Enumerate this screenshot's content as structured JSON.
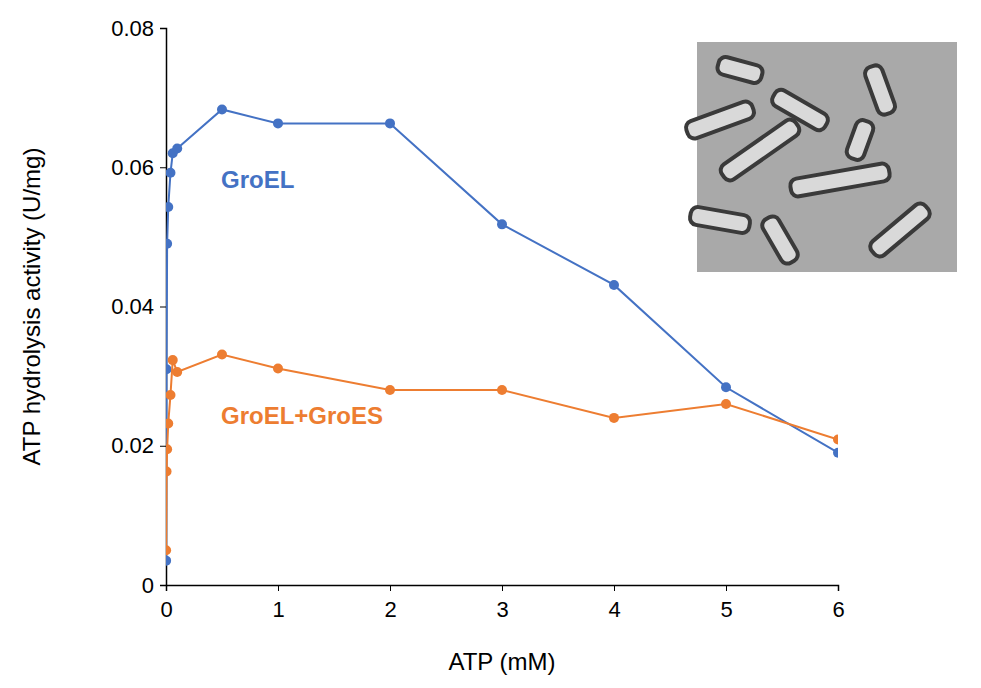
{
  "chart_data": {
    "type": "line",
    "x_label": "ATP (mM)",
    "y_label": "ATP hydrolysis activity (U/mg)",
    "x": [
      0.001,
      0.005,
      0.01,
      0.02,
      0.04,
      0.06,
      0.1,
      0.5,
      1,
      2,
      3,
      4,
      5,
      6
    ],
    "series": [
      {
        "name": "GroEL",
        "color": "#4472c4",
        "marker": "circle",
        "values": [
          0.0035,
          0.031,
          0.049,
          0.0543,
          0.0592,
          0.062,
          0.0627,
          0.0683,
          0.0663,
          0.0663,
          0.0518,
          0.0431,
          0.0284,
          0.019
        ]
      },
      {
        "name": "GroEL+GroES",
        "color": "#ed7d31",
        "marker": "circle",
        "values": [
          0.005,
          0.0163,
          0.0195,
          0.0232,
          0.0273,
          0.0323,
          0.0306,
          0.0331,
          0.0311,
          0.028,
          0.028,
          0.024,
          0.026,
          0.0209
        ]
      }
    ],
    "xlim": [
      0,
      6
    ],
    "xticks": [
      0,
      1,
      2,
      3,
      4,
      5,
      6
    ],
    "ylim": [
      0,
      0.08
    ],
    "yticks": [
      0,
      0.02,
      0.04,
      0.06,
      0.08
    ],
    "grid": false
  }
}
